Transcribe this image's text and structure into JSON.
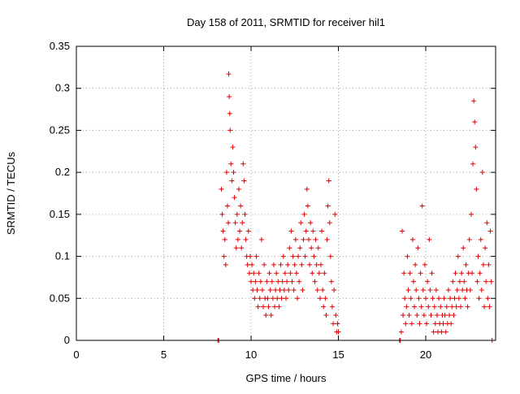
{
  "chart_data": {
    "type": "scatter",
    "title": "Day 158 of 2011, SRMTID for receiver hil1",
    "xlabel": "GPS time / hours",
    "ylabel": "SRMTID / TECUs",
    "xlim": [
      0,
      24
    ],
    "ylim": [
      0,
      0.35
    ],
    "xticks": [
      "0",
      "5",
      "10",
      "15",
      "20"
    ],
    "xtick_values": [
      0,
      5,
      10,
      15,
      20
    ],
    "yticks": [
      "0",
      "0.05",
      "0.1",
      "0.15",
      "0.2",
      "0.25",
      "0.3",
      "0.35"
    ],
    "ytick_values": [
      0,
      0.05,
      0.1,
      0.15,
      0.2,
      0.25,
      0.3,
      0.35
    ],
    "grid": true,
    "legend": "none",
    "marker": "plus",
    "color": "#e00000",
    "series": [
      {
        "points": [
          [
            8.1,
            0.0
          ],
          [
            8.15,
            0.0
          ],
          [
            8.3,
            0.18
          ],
          [
            8.35,
            0.15
          ],
          [
            8.4,
            0.13
          ],
          [
            8.45,
            0.1
          ],
          [
            8.5,
            0.12
          ],
          [
            8.55,
            0.09
          ],
          [
            8.6,
            0.2
          ],
          [
            8.65,
            0.16
          ],
          [
            8.7,
            0.14
          ],
          [
            8.72,
            0.317
          ],
          [
            8.75,
            0.29
          ],
          [
            8.78,
            0.27
          ],
          [
            8.8,
            0.25
          ],
          [
            8.85,
            0.21
          ],
          [
            8.9,
            0.19
          ],
          [
            8.95,
            0.23
          ],
          [
            9.0,
            0.2
          ],
          [
            9.05,
            0.17
          ],
          [
            9.1,
            0.14
          ],
          [
            9.15,
            0.11
          ],
          [
            9.2,
            0.15
          ],
          [
            9.25,
            0.12
          ],
          [
            9.3,
            0.18
          ],
          [
            9.35,
            0.13
          ],
          [
            9.4,
            0.16
          ],
          [
            9.45,
            0.11
          ],
          [
            9.5,
            0.14
          ],
          [
            9.55,
            0.21
          ],
          [
            9.6,
            0.19
          ],
          [
            9.65,
            0.15
          ],
          [
            9.7,
            0.12
          ],
          [
            9.75,
            0.1
          ],
          [
            9.8,
            0.09
          ],
          [
            9.85,
            0.13
          ],
          [
            9.9,
            0.08
          ],
          [
            9.95,
            0.1
          ],
          [
            10.0,
            0.07
          ],
          [
            10.05,
            0.09
          ],
          [
            10.1,
            0.06
          ],
          [
            10.15,
            0.08
          ],
          [
            10.2,
            0.05
          ],
          [
            10.25,
            0.07
          ],
          [
            10.3,
            0.1
          ],
          [
            10.35,
            0.06
          ],
          [
            10.4,
            0.04
          ],
          [
            10.45,
            0.08
          ],
          [
            10.5,
            0.05
          ],
          [
            10.55,
            0.07
          ],
          [
            10.6,
            0.12
          ],
          [
            10.65,
            0.06
          ],
          [
            10.7,
            0.04
          ],
          [
            10.75,
            0.09
          ],
          [
            10.8,
            0.05
          ],
          [
            10.85,
            0.03
          ],
          [
            10.9,
            0.07
          ],
          [
            10.95,
            0.05
          ],
          [
            11.0,
            0.04
          ],
          [
            11.05,
            0.08
          ],
          [
            11.1,
            0.06
          ],
          [
            11.15,
            0.03
          ],
          [
            11.2,
            0.07
          ],
          [
            11.25,
            0.05
          ],
          [
            11.3,
            0.09
          ],
          [
            11.35,
            0.04
          ],
          [
            11.4,
            0.06
          ],
          [
            11.45,
            0.08
          ],
          [
            11.5,
            0.05
          ],
          [
            11.55,
            0.07
          ],
          [
            11.6,
            0.04
          ],
          [
            11.65,
            0.06
          ],
          [
            11.7,
            0.09
          ],
          [
            11.75,
            0.05
          ],
          [
            11.8,
            0.07
          ],
          [
            11.85,
            0.1
          ],
          [
            11.9,
            0.06
          ],
          [
            11.95,
            0.08
          ],
          [
            12.0,
            0.05
          ],
          [
            12.05,
            0.07
          ],
          [
            12.1,
            0.09
          ],
          [
            12.15,
            0.06
          ],
          [
            12.2,
            0.11
          ],
          [
            12.25,
            0.08
          ],
          [
            12.3,
            0.13
          ],
          [
            12.35,
            0.07
          ],
          [
            12.4,
            0.1
          ],
          [
            12.45,
            0.06
          ],
          [
            12.5,
            0.09
          ],
          [
            12.55,
            0.12
          ],
          [
            12.6,
            0.08
          ],
          [
            12.65,
            0.05
          ],
          [
            12.7,
            0.1
          ],
          [
            12.75,
            0.07
          ],
          [
            12.8,
            0.11
          ],
          [
            12.85,
            0.14
          ],
          [
            12.9,
            0.09
          ],
          [
            12.95,
            0.06
          ],
          [
            13.0,
            0.12
          ],
          [
            13.05,
            0.15
          ],
          [
            13.1,
            0.1
          ],
          [
            13.15,
            0.13
          ],
          [
            13.2,
            0.18
          ],
          [
            13.25,
            0.16
          ],
          [
            13.3,
            0.12
          ],
          [
            13.35,
            0.09
          ],
          [
            13.4,
            0.14
          ],
          [
            13.45,
            0.11
          ],
          [
            13.5,
            0.08
          ],
          [
            13.55,
            0.13
          ],
          [
            13.6,
            0.1
          ],
          [
            13.65,
            0.07
          ],
          [
            13.7,
            0.12
          ],
          [
            13.75,
            0.09
          ],
          [
            13.8,
            0.06
          ],
          [
            13.85,
            0.11
          ],
          [
            13.9,
            0.08
          ],
          [
            13.95,
            0.05
          ],
          [
            14.0,
            0.09
          ],
          [
            14.05,
            0.13
          ],
          [
            14.1,
            0.06
          ],
          [
            14.15,
            0.04
          ],
          [
            14.2,
            0.08
          ],
          [
            14.25,
            0.05
          ],
          [
            14.3,
            0.03
          ],
          [
            14.35,
            0.12
          ],
          [
            14.4,
            0.16
          ],
          [
            14.45,
            0.19
          ],
          [
            14.5,
            0.14
          ],
          [
            14.55,
            0.1
          ],
          [
            14.6,
            0.07
          ],
          [
            14.65,
            0.04
          ],
          [
            14.7,
            0.02
          ],
          [
            14.75,
            0.06
          ],
          [
            14.8,
            0.15
          ],
          [
            14.85,
            0.03
          ],
          [
            14.9,
            0.01
          ],
          [
            14.95,
            0.02
          ],
          [
            15.0,
            0.01
          ],
          [
            18.5,
            0.0
          ],
          [
            18.55,
            0.0
          ],
          [
            18.6,
            0.01
          ],
          [
            18.65,
            0.13
          ],
          [
            18.7,
            0.03
          ],
          [
            18.75,
            0.08
          ],
          [
            18.8,
            0.05
          ],
          [
            18.85,
            0.02
          ],
          [
            18.9,
            0.04
          ],
          [
            18.95,
            0.1
          ],
          [
            19.0,
            0.06
          ],
          [
            19.05,
            0.03
          ],
          [
            19.1,
            0.08
          ],
          [
            19.15,
            0.05
          ],
          [
            19.2,
            0.02
          ],
          [
            19.25,
            0.12
          ],
          [
            19.3,
            0.07
          ],
          [
            19.35,
            0.04
          ],
          [
            19.4,
            0.09
          ],
          [
            19.45,
            0.06
          ],
          [
            19.5,
            0.03
          ],
          [
            19.55,
            0.11
          ],
          [
            19.6,
            0.05
          ],
          [
            19.65,
            0.02
          ],
          [
            19.7,
            0.08
          ],
          [
            19.75,
            0.04
          ],
          [
            19.8,
            0.16
          ],
          [
            19.85,
            0.06
          ],
          [
            19.9,
            0.03
          ],
          [
            19.95,
            0.09
          ],
          [
            20.0,
            0.05
          ],
          [
            20.05,
            0.02
          ],
          [
            20.1,
            0.07
          ],
          [
            20.15,
            0.04
          ],
          [
            20.2,
            0.12
          ],
          [
            20.25,
            0.06
          ],
          [
            20.3,
            0.03
          ],
          [
            20.35,
            0.08
          ],
          [
            20.4,
            0.05
          ],
          [
            20.45,
            0.01
          ],
          [
            20.5,
            0.04
          ],
          [
            20.55,
            0.02
          ],
          [
            20.6,
            0.06
          ],
          [
            20.65,
            0.03
          ],
          [
            20.7,
            0.01
          ],
          [
            20.75,
            0.05
          ],
          [
            20.8,
            0.02
          ],
          [
            20.85,
            0.04
          ],
          [
            20.9,
            0.01
          ],
          [
            20.95,
            0.03
          ],
          [
            21.0,
            0.02
          ],
          [
            21.05,
            0.05
          ],
          [
            21.1,
            0.03
          ],
          [
            21.15,
            0.01
          ],
          [
            21.2,
            0.04
          ],
          [
            21.25,
            0.02
          ],
          [
            21.3,
            0.06
          ],
          [
            21.35,
            0.03
          ],
          [
            21.4,
            0.05
          ],
          [
            21.45,
            0.02
          ],
          [
            21.5,
            0.04
          ],
          [
            21.55,
            0.07
          ],
          [
            21.6,
            0.03
          ],
          [
            21.65,
            0.05
          ],
          [
            21.7,
            0.08
          ],
          [
            21.75,
            0.04
          ],
          [
            21.8,
            0.06
          ],
          [
            21.85,
            0.1
          ],
          [
            21.9,
            0.05
          ],
          [
            21.95,
            0.07
          ],
          [
            22.0,
            0.04
          ],
          [
            22.05,
            0.08
          ],
          [
            22.1,
            0.06
          ],
          [
            22.15,
            0.11
          ],
          [
            22.2,
            0.07
          ],
          [
            22.25,
            0.05
          ],
          [
            22.3,
            0.09
          ],
          [
            22.35,
            0.06
          ],
          [
            22.4,
            0.04
          ],
          [
            22.45,
            0.08
          ],
          [
            22.5,
            0.12
          ],
          [
            22.55,
            0.06
          ],
          [
            22.6,
            0.15
          ],
          [
            22.65,
            0.08
          ],
          [
            22.7,
            0.21
          ],
          [
            22.75,
            0.285
          ],
          [
            22.8,
            0.26
          ],
          [
            22.85,
            0.23
          ],
          [
            22.9,
            0.18
          ],
          [
            22.95,
            0.07
          ],
          [
            23.0,
            0.1
          ],
          [
            23.05,
            0.05
          ],
          [
            23.1,
            0.08
          ],
          [
            23.15,
            0.12
          ],
          [
            23.2,
            0.06
          ],
          [
            23.25,
            0.2
          ],
          [
            23.3,
            0.09
          ],
          [
            23.35,
            0.04
          ],
          [
            23.4,
            0.11
          ],
          [
            23.45,
            0.07
          ],
          [
            23.5,
            0.14
          ],
          [
            23.55,
            0.05
          ],
          [
            23.6,
            0.09
          ],
          [
            23.65,
            0.04
          ],
          [
            23.7,
            0.13
          ],
          [
            23.75,
            0.07
          ],
          [
            23.8,
            0.0
          ]
        ]
      }
    ]
  }
}
